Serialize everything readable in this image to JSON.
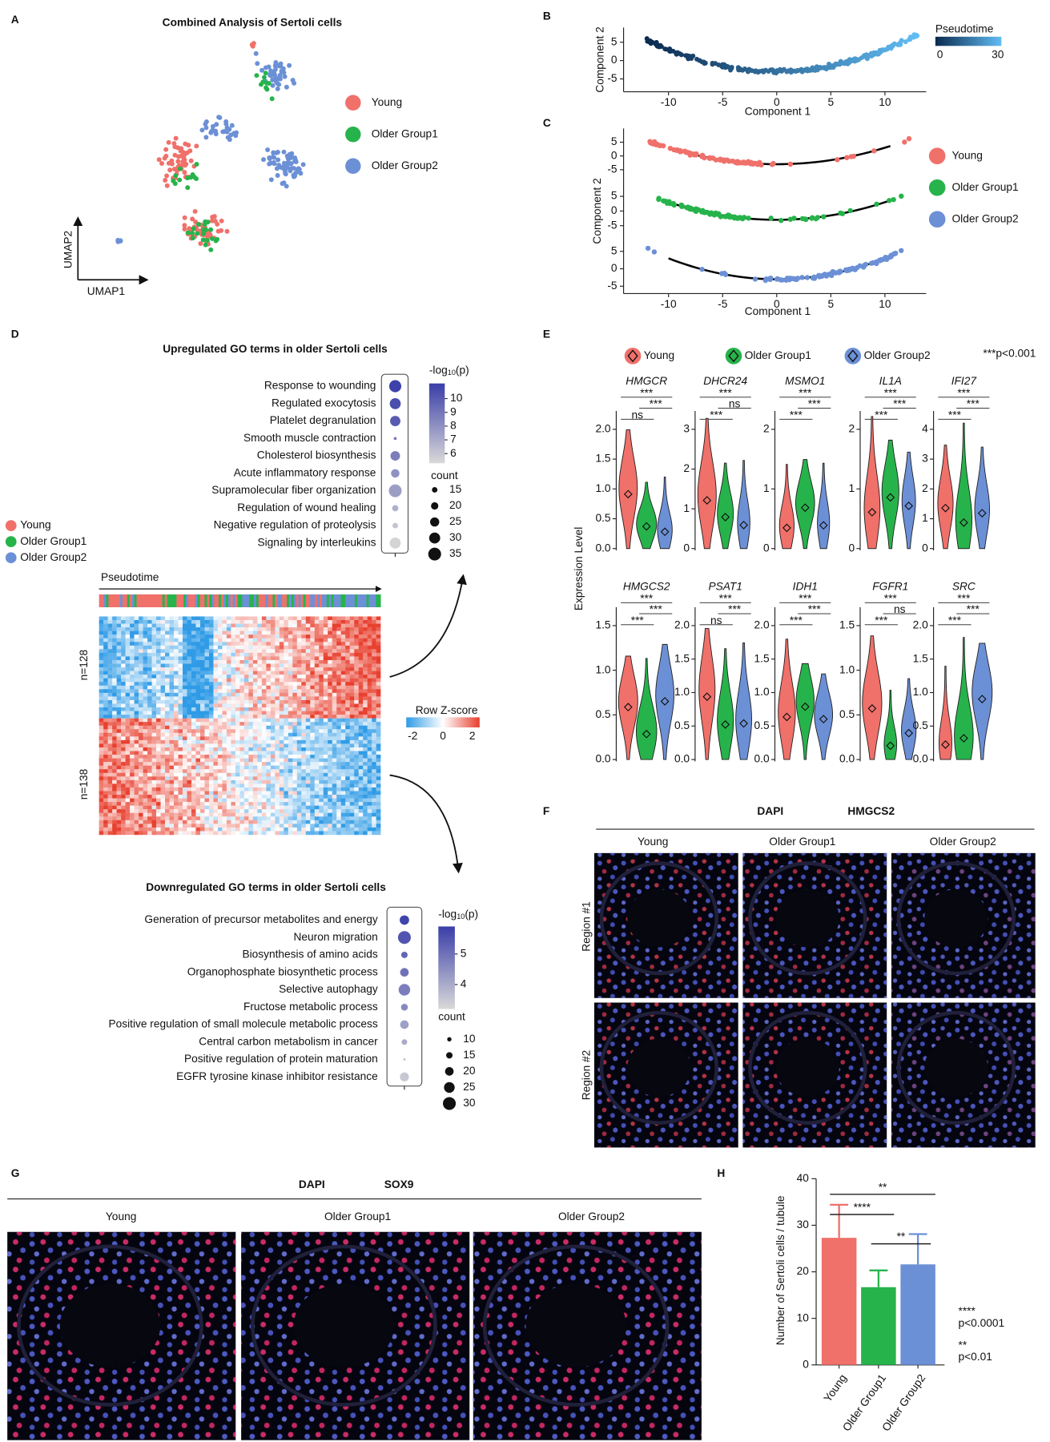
{
  "panels": {
    "A": {
      "label": "A",
      "title": "Combined Analysis of Sertoli cells",
      "legend": [
        "Young",
        "Older Group1",
        "Older Group2"
      ],
      "x_axis": "UMAP1",
      "y_axis": "UMAP2"
    },
    "B": {
      "label": "B",
      "x_label": "Component 1",
      "y_label": "Component 2",
      "xticks": [
        "-10",
        "-5",
        "0",
        "5",
        "10"
      ],
      "yticks": [
        "5",
        "0",
        "-5"
      ],
      "colorbar_title": "Pseudotime",
      "colorbar_ticks": [
        "0",
        "30"
      ]
    },
    "C": {
      "label": "C",
      "x_label": "Component 1",
      "y_label": "Component 2",
      "xticks": [
        "-10",
        "-5",
        "0",
        "5",
        "10"
      ],
      "yticks": [
        "5",
        "0",
        "-5"
      ],
      "legend": [
        "Young",
        "Older Group1",
        "Older Group2"
      ]
    },
    "D": {
      "label": "D",
      "legend": [
        "Young",
        "Older Group1",
        "Older Group2"
      ],
      "heatmap_axis": "Pseudotime",
      "clusters": [
        "n=128",
        "n=138"
      ],
      "colorbar_title": "Row Z-score",
      "colorbar_ticks": [
        "-2",
        "0",
        "2"
      ]
    },
    "E": {
      "label": "E",
      "legend": [
        "Young",
        "Older Group1",
        "Older Group2"
      ],
      "note": "***p<0.001",
      "y_label": "Expression Level",
      "genes": [
        {
          "name": "HMGCR",
          "yticks": [
            "0.0",
            "0.5",
            "1.0",
            "1.5",
            "2.0"
          ],
          "sig": [
            "***",
            "***",
            "ns"
          ]
        },
        {
          "name": "DHCR24",
          "yticks": [
            "0",
            "1",
            "2",
            "3"
          ],
          "sig": [
            "***",
            "ns",
            "***"
          ]
        },
        {
          "name": "MSMO1",
          "yticks": [
            "0",
            "1",
            "2"
          ],
          "sig": [
            "***",
            "***",
            "***"
          ]
        },
        {
          "name": "IL1A",
          "yticks": [
            "0",
            "1",
            "2"
          ],
          "sig": [
            "***",
            "***",
            "***"
          ]
        },
        {
          "name": "IFI27",
          "yticks": [
            "0",
            "1",
            "2",
            "3",
            "4"
          ],
          "sig": [
            "***",
            "***",
            "***"
          ]
        },
        {
          "name": "HMGCS2",
          "yticks": [
            "0.0",
            "0.5",
            "1.0",
            "1.5"
          ],
          "sig": [
            "***",
            "***",
            "***"
          ]
        },
        {
          "name": "PSAT1",
          "yticks": [
            "0.0",
            "0.5",
            "1.0",
            "1.5",
            "2.0"
          ],
          "sig": [
            "***",
            "***",
            "ns"
          ]
        },
        {
          "name": "IDH1",
          "yticks": [
            "0.0",
            "0.5",
            "1.0",
            "1.5",
            "2.0"
          ],
          "sig": [
            "***",
            "***",
            "***"
          ]
        },
        {
          "name": "FGFR1",
          "yticks": [
            "0.0",
            "0.5",
            "1.0",
            "1.5"
          ],
          "sig": [
            "***",
            "ns",
            "***"
          ]
        },
        {
          "name": "SRC",
          "yticks": [
            "0.0",
            "0.5",
            "1.0",
            "1.5",
            "2.0"
          ],
          "sig": [
            "***",
            "***",
            "***"
          ]
        }
      ]
    },
    "F": {
      "label": "F",
      "stains": [
        "DAPI",
        "HMGCS2"
      ],
      "columns": [
        "Young",
        "Older Group1",
        "Older Group2"
      ],
      "rows": [
        "Region #1",
        "Region #2"
      ]
    },
    "G": {
      "label": "G",
      "stains": [
        "DAPI",
        "SOX9"
      ],
      "columns": [
        "Young",
        "Older Group1",
        "Older Group2"
      ]
    },
    "H": {
      "label": "H"
    }
  },
  "chart_data": [
    {
      "type": "bar",
      "y_label": "Number of Sertoli cells / tubule",
      "categories": [
        "Young",
        "Older Group1",
        "Older Group2"
      ],
      "values": [
        27.3,
        16.7,
        21.6
      ],
      "errors": [
        7.1,
        3.6,
        6.5
      ],
      "colors": [
        "#f0706a",
        "#27b34b",
        "#6c90d6"
      ],
      "ylim": [
        0,
        40
      ],
      "yticks": [
        0,
        10,
        20,
        30,
        40
      ],
      "significance": [
        "**",
        "****",
        "**"
      ],
      "notes": [
        "****",
        "p<0.0001",
        "**",
        "p<0.01"
      ]
    },
    {
      "type": "dot",
      "title": "Upregulated GO terms in older Sertoli cells",
      "categories": [
        "Response to wounding",
        "Regulated exocytosis",
        "Platelet degranulation",
        "Smooth muscle contraction",
        "Cholesterol biosynthesis",
        "Acute inflammatory response",
        "Supramolecular fiber organization",
        "Regulation of wound healing",
        "Negative regulation of proteolysis",
        "Signaling by interleukins"
      ],
      "values": [
        11,
        10.5,
        10,
        9,
        8.7,
        8,
        7.5,
        6.8,
        6.1,
        5.5
      ],
      "counts": [
        33,
        30,
        28,
        8,
        26,
        23,
        35,
        17,
        15,
        30
      ],
      "clim": [
        5.3,
        11.1
      ],
      "cticks": [
        6,
        7,
        8,
        9,
        10
      ],
      "colorbar_title": [
        "-log",
        "10",
        "(p)"
      ],
      "count_title": "count",
      "count_ticks": [
        15,
        20,
        25,
        30,
        35
      ]
    },
    {
      "type": "dot",
      "title": "Downregulated GO terms in older Sertoli cells",
      "categories": [
        "Generation of precursor metabolites and energy",
        "Neuron migration",
        "Biosynthesis of amino acids",
        "Organophosphate biosynthetic process",
        "Selective autophagy",
        "Fructose metabolic process",
        "Positive regulation of small molecule metabolic process",
        "Central carbon metabolism in cancer",
        "Positive regulation of protein maturation",
        "EGFR tyrosine kinase inhibitor resistance"
      ],
      "values": [
        5.8,
        5.5,
        5.2,
        5.0,
        4.8,
        4.6,
        4.2,
        4.0,
        3.8,
        3.5
      ],
      "counts": [
        22,
        30,
        15,
        20,
        27,
        16,
        20,
        13,
        5,
        21
      ],
      "clim": [
        3.2,
        5.9
      ],
      "cticks": [
        4,
        5
      ],
      "colorbar_title": [
        "-log",
        "10",
        "(p)"
      ],
      "count_title": "count",
      "count_ticks": [
        10,
        15,
        20,
        25,
        30
      ]
    }
  ]
}
